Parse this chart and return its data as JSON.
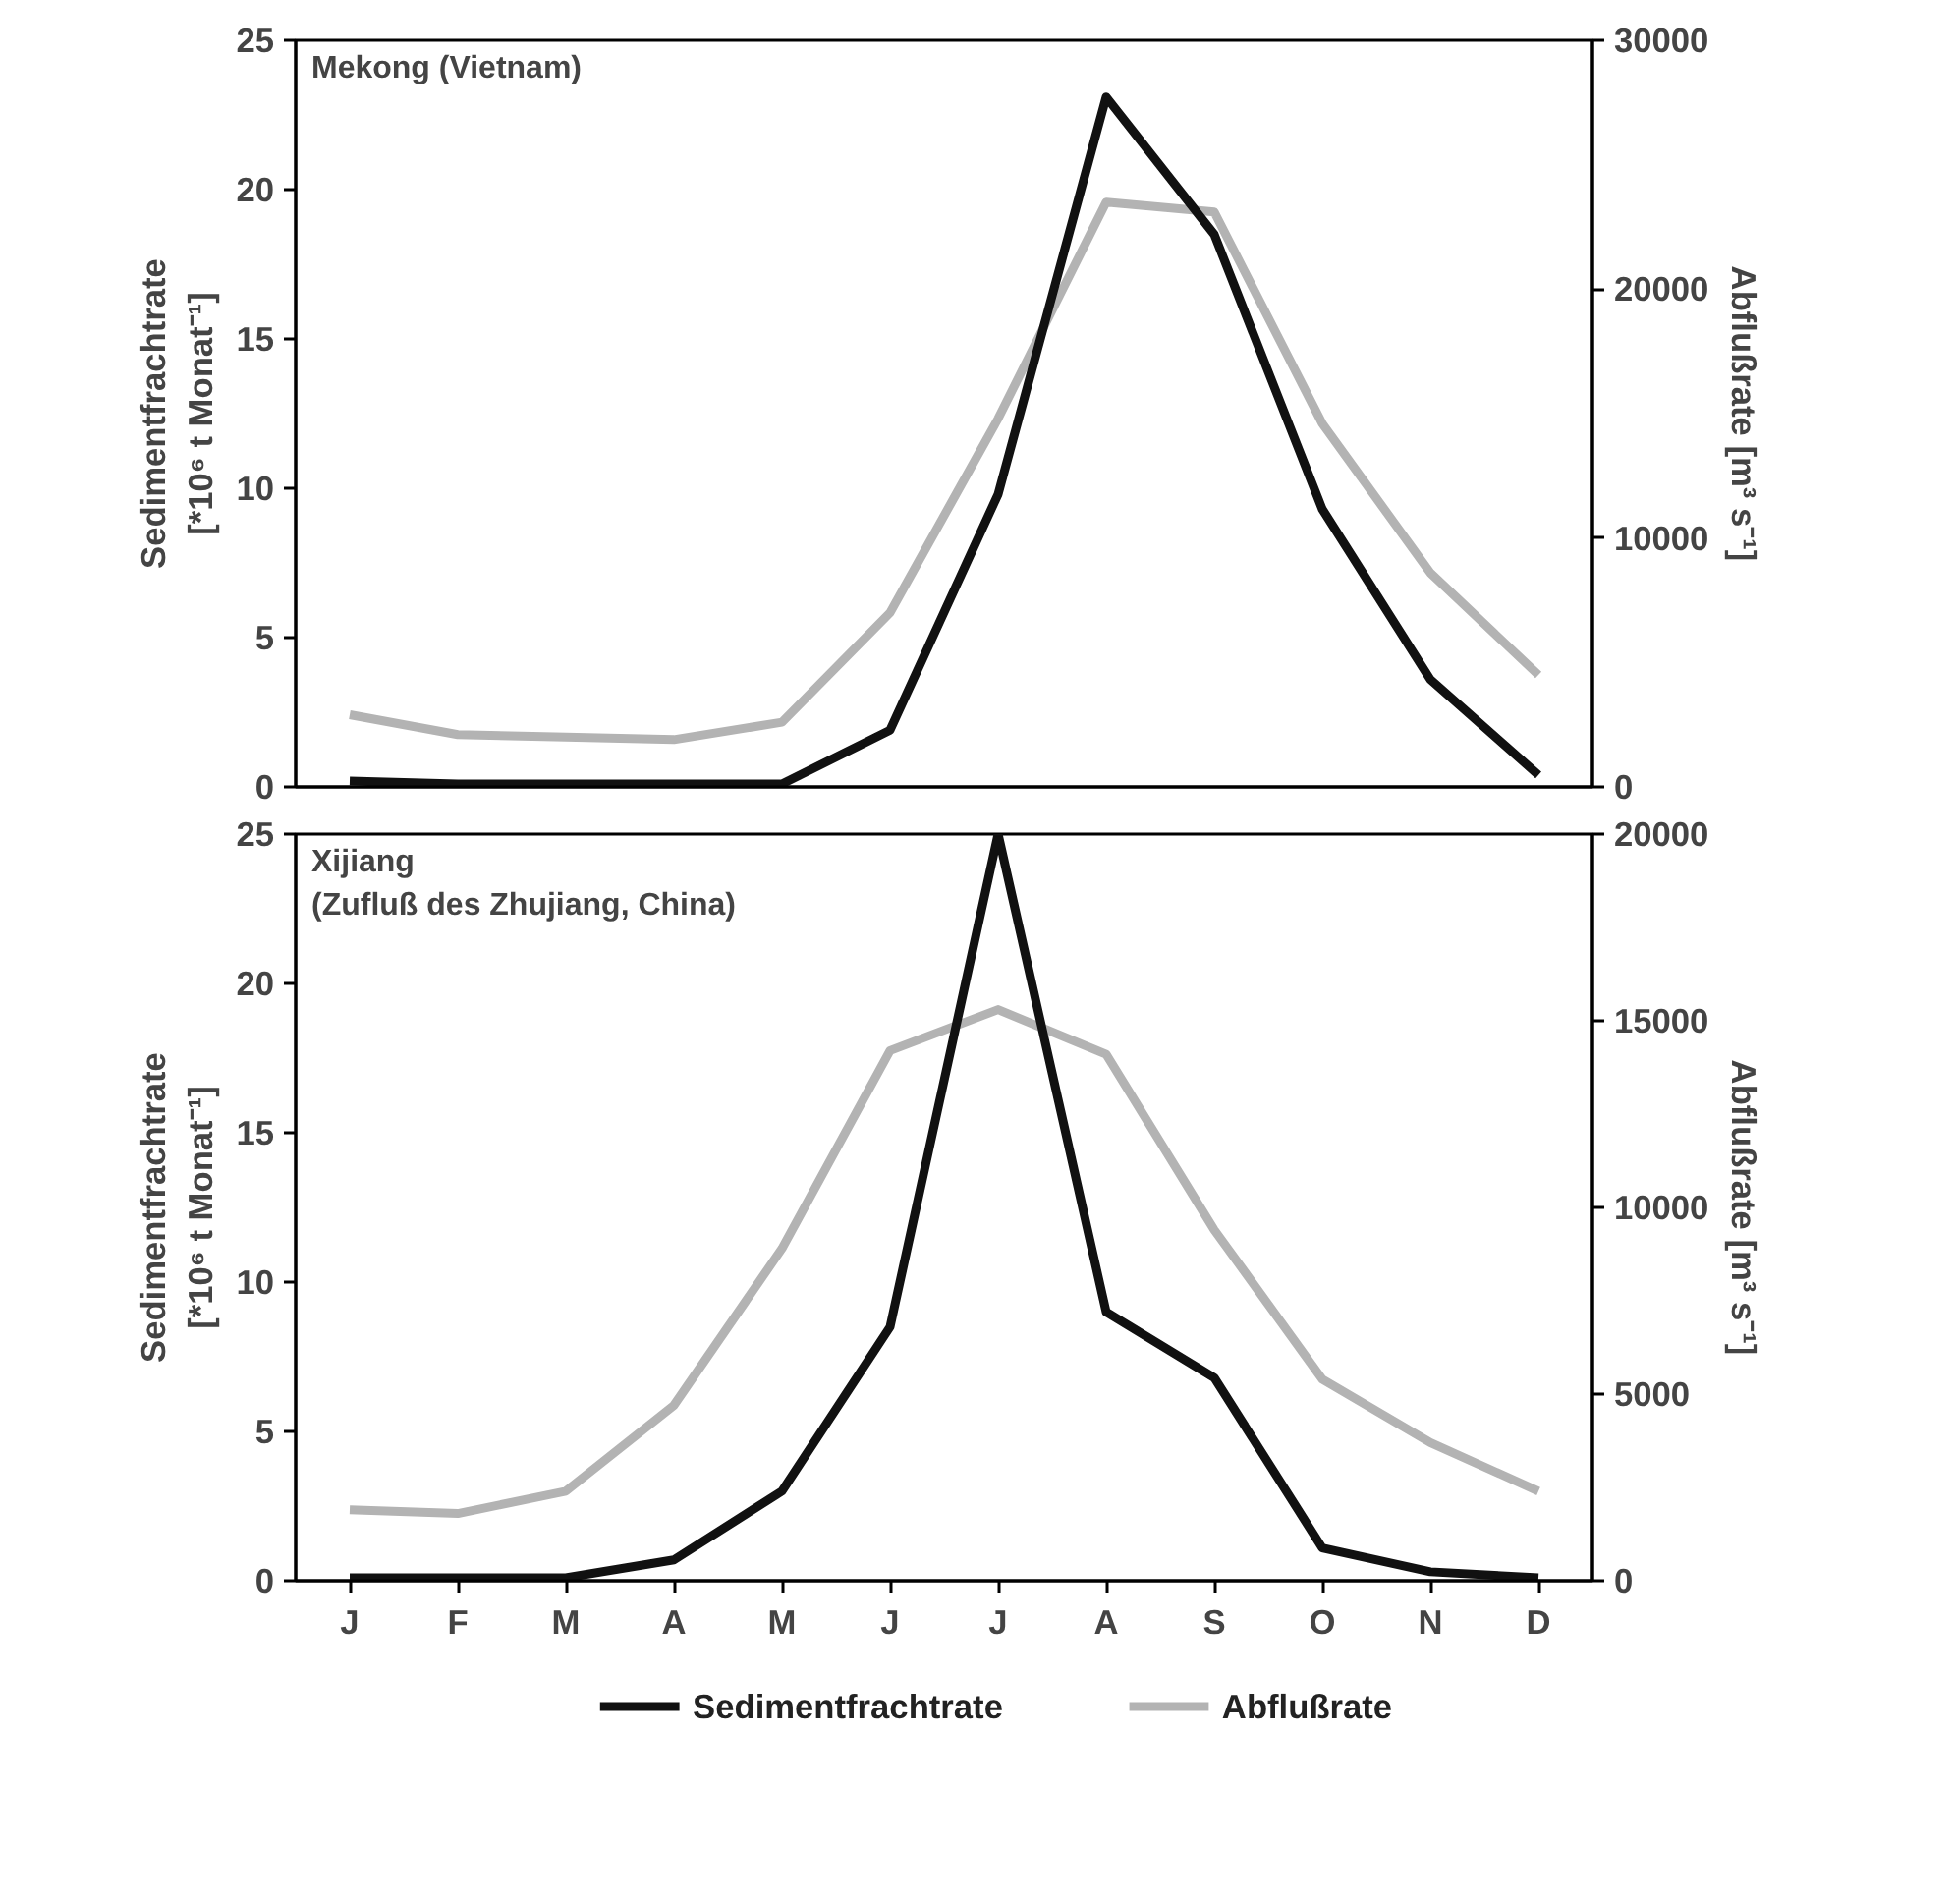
{
  "chart_data": [
    {
      "type": "line",
      "categories": [
        null,
        null,
        null,
        null,
        null,
        null,
        null,
        null,
        null,
        null,
        null,
        null
      ],
      "ylabel": "Sedimentfrachtrate\n[*10⁶ t Monat⁻¹]",
      "y2label": "Abflußrate [m³ s⁻¹]",
      "annotations": [
        "Mekong (Vietnam)"
      ],
      "ylim": [
        0,
        25
      ],
      "yticks": [
        0,
        5,
        10,
        15,
        20,
        25
      ],
      "y2lim": [
        0,
        30000
      ],
      "y2ticks": [
        0,
        10000,
        20000,
        30000
      ],
      "tick_labels": "y",
      "grid": false,
      "legend": false,
      "series": [
        {
          "color": "#b3b3b3",
          "axis": "y2",
          "values": [
            2900,
            2100,
            2000,
            1900,
            2600,
            7000,
            14800,
            23500,
            23100,
            14600,
            8600,
            4500
          ]
        },
        {
          "color": "#111111",
          "values": [
            0.2,
            0.1,
            0.1,
            0.1,
            0.1,
            1.9,
            9.8,
            23.1,
            18.5,
            9.3,
            3.6,
            0.4
          ]
        }
      ]
    },
    {
      "type": "line",
      "categories": [
        "J",
        "F",
        "M",
        "A",
        "M",
        "J",
        "J",
        "A",
        "S",
        "O",
        "N",
        "D"
      ],
      "ylabel": "Sedimentfrachtrate\n[*10⁶ t Monat⁻¹]",
      "y2label": "Abflußrate [m³ s⁻¹]",
      "annotations": [
        "Xijiang\n(Zufluß des Zhujiang, China)"
      ],
      "ylim": [
        0,
        25
      ],
      "yticks": [
        0,
        5,
        10,
        15,
        20,
        25
      ],
      "y2lim": [
        0,
        20000
      ],
      "y2ticks": [
        0,
        5000,
        10000,
        15000,
        20000
      ],
      "grid": false,
      "legend": "bottom",
      "series": [
        {
          "name": "Abflußrate",
          "color": "#b3b3b3",
          "axis": "y2",
          "values": [
            1900,
            1800,
            2400,
            4700,
            8900,
            14200,
            15300,
            14100,
            9400,
            5400,
            3700,
            2400
          ]
        },
        {
          "name": "Sedimentfrachtrate",
          "color": "#111111",
          "values": [
            0.1,
            0.1,
            0.1,
            0.7,
            3.0,
            8.5,
            25,
            9.0,
            6.8,
            1.1,
            0.3,
            0.1
          ]
        }
      ]
    }
  ]
}
